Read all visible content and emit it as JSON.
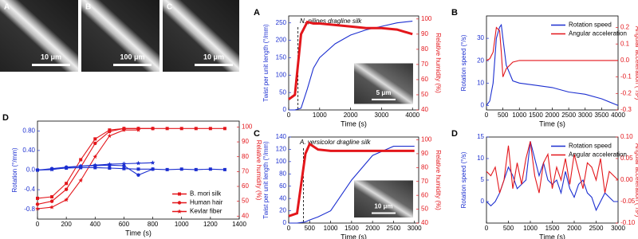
{
  "images": [
    {
      "label": "A",
      "scale_label": "10 μm"
    },
    {
      "label": "B",
      "scale_label": "100 μm"
    },
    {
      "label": "C",
      "scale_label": "10 μm"
    }
  ],
  "chart_data": [
    {
      "type": "line",
      "panel": "D",
      "xlabel": "Time (s)",
      "ylabel": "Rotation (°/mm)",
      "y2label": "Relative humidity (%)",
      "x": [
        0,
        100,
        200,
        300,
        400,
        500,
        600,
        700,
        800,
        900,
        1000,
        1100,
        1200,
        1300
      ],
      "xlim": [
        0,
        1400
      ],
      "xticks": [
        0,
        200,
        400,
        600,
        800,
        1000,
        1200,
        1400
      ],
      "ylim": [
        -1.0,
        1.0
      ],
      "yticks": [
        {
          "value": -0.8,
          "label": "-0.8"
        },
        {
          "value": -0.4,
          "label": "-0.4"
        },
        {
          "value": 0,
          "label": "0.0"
        },
        {
          "value": 0.4,
          "label": "0.40"
        },
        {
          "value": 0.8,
          "label": "0.80"
        }
      ],
      "y2lim": [
        38,
        104
      ],
      "y2ticks": [
        40,
        50,
        60,
        70,
        80,
        90,
        100
      ],
      "legend": "lower right",
      "series": [
        {
          "name": "B. mori silk",
          "marker": "square",
          "color": "#e3161b",
          "axis": "y2",
          "values": [
            52,
            53,
            62,
            78,
            92,
            98,
            99,
            99,
            99,
            99,
            99,
            99,
            99,
            99
          ]
        },
        {
          "name": "Human hair",
          "marker": "circle",
          "color": "#e3161b",
          "axis": "y2",
          "values": [
            48,
            50,
            58,
            73,
            89,
            97,
            99,
            99,
            99,
            null,
            null,
            null,
            null,
            null
          ]
        },
        {
          "name": "Kevlar fiber",
          "marker": "star",
          "color": "#e3161b",
          "axis": "y2",
          "values": [
            45,
            46,
            51,
            64,
            80,
            94,
            98,
            98,
            null,
            null,
            null,
            null,
            null,
            null
          ]
        },
        {
          "marker": "square",
          "color": "#1c2fd0",
          "axis": "y",
          "values": [
            0.0,
            0.02,
            0.04,
            0.05,
            0.05,
            0.04,
            0.03,
            0.02,
            0.02,
            0.01,
            0.02,
            0.01,
            0.02,
            0.01
          ]
        },
        {
          "marker": "circle",
          "color": "#1c2fd0",
          "axis": "y",
          "values": [
            0.0,
            0.03,
            0.06,
            0.08,
            0.09,
            0.1,
            0.09,
            -0.1,
            0.02,
            null,
            null,
            null,
            null,
            null
          ]
        },
        {
          "marker": "star",
          "color": "#1c2fd0",
          "axis": "y",
          "values": [
            0.0,
            0.01,
            0.05,
            0.08,
            0.1,
            0.12,
            0.13,
            0.14,
            0.15,
            null,
            null,
            null,
            null,
            null
          ]
        }
      ]
    },
    {
      "type": "line",
      "panel": "A",
      "annotation": "N. pilipes dragline silk",
      "inset_scale_label": "5 μm",
      "reference_x": 300,
      "xlabel": "Time (s)",
      "ylabel": "Twist per unit length (°/mm)",
      "y2label": "Relative humidity (%)",
      "x": [
        0,
        200,
        400,
        600,
        800,
        1000,
        1500,
        2000,
        2500,
        3000,
        3500,
        4000
      ],
      "xlim": [
        0,
        4200
      ],
      "xticks": [
        0,
        1000,
        2000,
        3000,
        4000
      ],
      "ylim": [
        0,
        270
      ],
      "yticks": [
        0,
        50,
        100,
        150,
        200,
        250
      ],
      "y2lim": [
        40,
        102
      ],
      "y2ticks": [
        40,
        50,
        60,
        70,
        80,
        90,
        100
      ],
      "series": [
        {
          "color": "#1c2fd0",
          "axis": "y",
          "values": [
            0,
            0,
            5,
            60,
            120,
            150,
            190,
            215,
            230,
            240,
            250,
            255
          ]
        },
        {
          "color": "#e3161b",
          "axis": "y2",
          "width": 3,
          "values": [
            47,
            50,
            90,
            98,
            97,
            97,
            96,
            95,
            94,
            94,
            93,
            90
          ]
        }
      ]
    },
    {
      "type": "line",
      "panel": "B",
      "xlabel": "Time (s)",
      "ylabel": "Rotation speed (°/s)",
      "y2label": "Angular acceleration (°/s²)",
      "x": [
        0,
        100,
        200,
        300,
        400,
        450,
        500,
        600,
        800,
        1000,
        1500,
        2000,
        2500,
        3000,
        3500,
        4000
      ],
      "xlim": [
        0,
        4000
      ],
      "xticks": [
        0,
        500,
        1000,
        1500,
        2000,
        2500,
        3000,
        3500,
        4000
      ],
      "ylim": [
        -2,
        40
      ],
      "yticks": [
        0,
        10,
        20,
        30
      ],
      "y2lim": [
        -0.3,
        0.27
      ],
      "y2ticks": [
        {
          "value": -0.3,
          "label": "-0.3"
        },
        {
          "value": -0.2,
          "label": "-0.2"
        },
        {
          "value": -0.1,
          "label": "-0.1"
        },
        {
          "value": 0,
          "label": "0.0"
        },
        {
          "value": 0.1,
          "label": "0.1"
        },
        {
          "value": 0.2,
          "label": "0.2"
        }
      ],
      "legend": "upper right",
      "series": [
        {
          "name": "Rotation speed",
          "color": "#1c2fd0",
          "axis": "y",
          "values": [
            0,
            2,
            10,
            30,
            35,
            36,
            30,
            18,
            11,
            10,
            9,
            8,
            6,
            5,
            3,
            0
          ]
        },
        {
          "name": "Angular acceleration",
          "color": "#e3161b",
          "axis": "y2",
          "values": [
            0,
            0.01,
            0.05,
            0.2,
            0.18,
            0.05,
            -0.1,
            -0.05,
            -0.01,
            0,
            0,
            0,
            0,
            0,
            0,
            0
          ]
        }
      ]
    },
    {
      "type": "line",
      "panel": "C",
      "annotation": "A. versicolor dragline silk",
      "inset_scale_label": "10 μm",
      "reference_x": 350,
      "xlabel": "Time (s)",
      "ylabel": "Twist per unit length (°/mm)",
      "y2label": "Relative humidity (%)",
      "x": [
        0,
        200,
        400,
        500,
        700,
        1000,
        1500,
        2000,
        2500,
        3000
      ],
      "xlim": [
        0,
        3100
      ],
      "xticks": [
        0,
        500,
        1000,
        1500,
        2000,
        2500,
        3000
      ],
      "ylim": [
        0,
        140
      ],
      "yticks": [
        0,
        20,
        40,
        60,
        80,
        100,
        120,
        140
      ],
      "y2lim": [
        40,
        102
      ],
      "y2ticks": [
        40,
        50,
        60,
        70,
        80,
        90,
        100
      ],
      "series": [
        {
          "color": "#1c2fd0",
          "axis": "y",
          "values": [
            0,
            0,
            2,
            5,
            10,
            20,
            70,
            110,
            125,
            125
          ]
        },
        {
          "color": "#e3161b",
          "axis": "y2",
          "width": 3,
          "values": [
            45,
            47,
            90,
            97,
            93,
            92,
            92,
            92,
            92,
            92
          ]
        }
      ]
    },
    {
      "type": "line",
      "panel": "D",
      "xlabel": "Time (s)",
      "ylabel": "Rotation speed (°/s)",
      "y2label": "Angular acceleration (°/s²)",
      "x": [
        0,
        100,
        200,
        300,
        400,
        500,
        600,
        700,
        800,
        900,
        1000,
        1100,
        1200,
        1300,
        1400,
        1500,
        1600,
        1700,
        1800,
        1900,
        2000,
        2100,
        2200,
        2300,
        2400,
        2500,
        2600,
        2700,
        2800,
        2900,
        3000
      ],
      "xlim": [
        0,
        3000
      ],
      "xticks": [
        0,
        500,
        1000,
        1500,
        2000,
        2500,
        3000
      ],
      "ylim": [
        -5,
        15
      ],
      "yticks": [
        0,
        5,
        10,
        15
      ],
      "y2lim": [
        -0.1,
        0.1
      ],
      "y2ticks": [
        {
          "value": -0.1,
          "label": "-0.10"
        },
        {
          "value": -0.05,
          "label": "-0.05"
        },
        {
          "value": 0,
          "label": "0.00"
        },
        {
          "value": 0.05,
          "label": "0.05"
        },
        {
          "value": 0.1,
          "label": "0.10"
        }
      ],
      "legend": "upper right",
      "series": [
        {
          "name": "Rotation speed",
          "color": "#1c2fd0",
          "axis": "y",
          "values": [
            0,
            -1,
            0,
            2,
            5,
            8,
            6,
            3,
            4,
            5,
            14,
            10,
            6,
            9,
            5,
            4,
            5,
            2,
            7,
            3,
            1,
            4,
            5,
            2,
            1,
            -2,
            0,
            2,
            1,
            0,
            0
          ]
        },
        {
          "name": "Angular acceleration",
          "color": "#e3161b",
          "axis": "y2",
          "values": [
            0.02,
            0.01,
            0.03,
            -0.03,
            0.0,
            0.08,
            -0.02,
            0.04,
            -0.01,
            0.05,
            0.09,
            0.01,
            -0.03,
            0.04,
            0.06,
            -0.02,
            0.03,
            0.0,
            0.05,
            -0.01,
            0.06,
            0.02,
            -0.02,
            0.04,
            0.03,
            0.0,
            0.05,
            -0.03,
            0.02,
            0.01,
            0.0
          ]
        }
      ]
    }
  ]
}
